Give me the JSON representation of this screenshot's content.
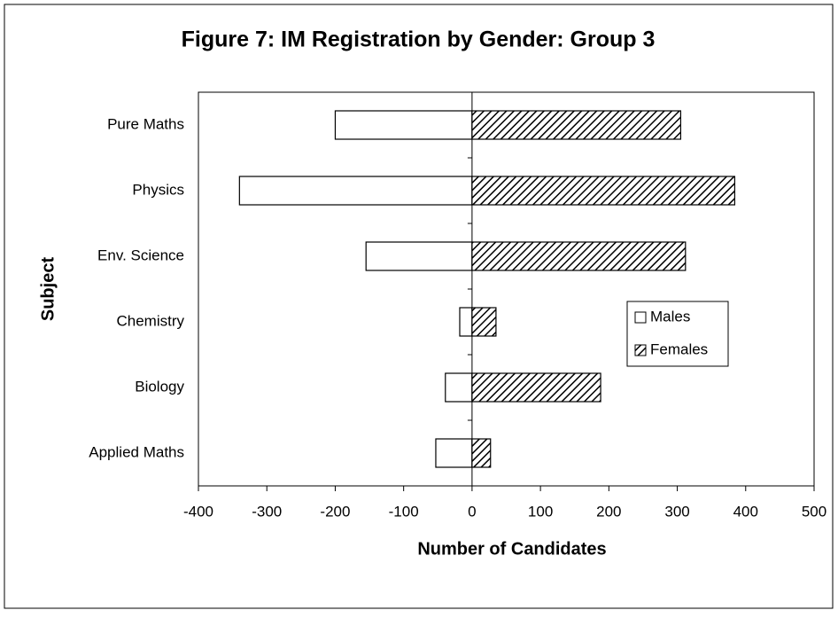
{
  "chart_data": {
    "type": "hbar",
    "title": "Figure 7: IM Registration by Gender: Group 3",
    "x_label": "Number of Candidates",
    "y_label": "Subject",
    "categories": [
      "Pure Maths",
      "Physics",
      "Env. Science",
      "Chemistry",
      "Biology",
      "Applied Maths"
    ],
    "series": [
      {
        "name": "Males",
        "color": "#ffffff",
        "hatch": false,
        "values": [
          -200,
          -340,
          -155,
          -18,
          -39,
          -53
        ]
      },
      {
        "name": "Females",
        "color": "#000000",
        "hatch": true,
        "values": [
          305,
          384,
          312,
          35,
          188,
          27
        ]
      }
    ],
    "xlim": [
      -400,
      500
    ],
    "xticks": [
      -400,
      -300,
      -200,
      -100,
      0,
      100,
      200,
      300,
      400,
      500
    ],
    "grid": false,
    "legend": "right"
  }
}
